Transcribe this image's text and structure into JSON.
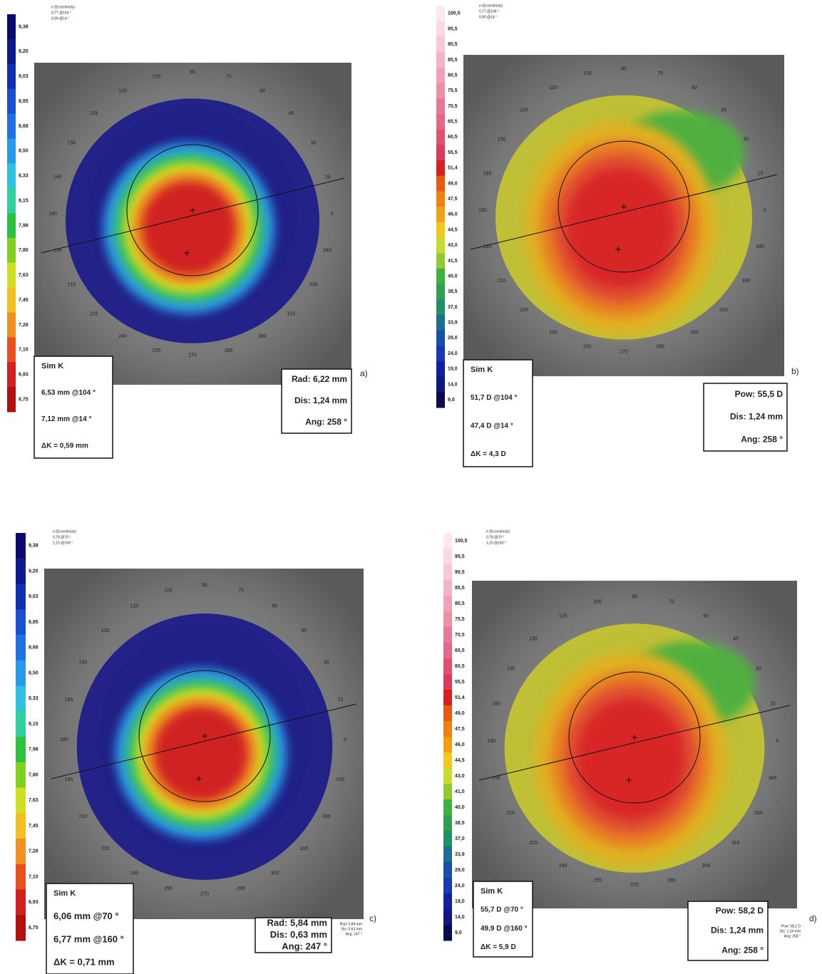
{
  "scales": {
    "radius": [
      "9,38",
      "9,20",
      "9,03",
      "8,85",
      "8,68",
      "8,50",
      "8,33",
      "8,15",
      "7,98",
      "7,80",
      "7,63",
      "7,45",
      "7,28",
      "7,10",
      "6,93",
      "6,75"
    ],
    "power": [
      "100,5",
      "95,5",
      "90,5",
      "85,5",
      "80,5",
      "75,5",
      "70,5",
      "65,5",
      "60,5",
      "55,5",
      "51,4",
      "49,0",
      "47,5",
      "46,0",
      "44,5",
      "43,0",
      "41,5",
      "40,0",
      "38,5",
      "37,0",
      "33,9",
      "29,0",
      "24,0",
      "19,0",
      "14,0",
      "9,0"
    ]
  },
  "angle_labels": [
    "0",
    "15",
    "30",
    "45",
    "60",
    "75",
    "90",
    "105",
    "120",
    "135",
    "150",
    "165",
    "180",
    "195",
    "210",
    "225",
    "240",
    "255",
    "270",
    "285",
    "300",
    "315",
    "330",
    "345"
  ],
  "panels": [
    {
      "letter": "a)",
      "scale": "radius",
      "eccentricity": [
        "e (Eccentricity)",
        "0,77 @104 °",
        "0,90 @14 °"
      ],
      "sim_k": {
        "title": "Sim K",
        "lines": [
          "6,53 mm @104 °",
          "7,12 mm @14 °",
          "ΔK = 0,59 mm"
        ]
      },
      "info": [
        "Rad: 6,22 mm",
        "Dis: 1,24 mm",
        "Ang: 258 °"
      ]
    },
    {
      "letter": "b)",
      "scale": "power",
      "eccentricity": [
        "e (Eccentricity)",
        "0,77 @104 °",
        "0,90 @14 °"
      ],
      "sim_k": {
        "title": "Sim K",
        "lines": [
          "51,7 D @104 °",
          "47,4 D @14 °",
          "ΔK = 4,3 D"
        ]
      },
      "info": [
        "Pow: 55,5 D",
        "Dis: 1,24 mm",
        "Ang: 258 °"
      ]
    },
    {
      "letter": "c)",
      "scale": "radius",
      "eccentricity": [
        "e (Eccentricity)",
        "0,78 @70 °",
        "1,15 @160 °"
      ],
      "sim_k": {
        "title": "Sim K",
        "lines": [
          "6,06 mm @70 °",
          "6,77 mm @160 °",
          "ΔK = 0,71 mm"
        ]
      },
      "info": [
        "Rad: 5,84 mm",
        "Dis: 0,63 mm",
        "Ang: 247 °"
      ]
    },
    {
      "letter": "d)",
      "scale": "power",
      "eccentricity": [
        "e (Eccentricity)",
        "0,78 @70 °",
        "1,15 @160 °"
      ],
      "sim_k": {
        "title": "Sim K",
        "lines": [
          "55,7 D @70 °",
          "49,9 D @160 °",
          "ΔK = 5,9 D"
        ]
      },
      "info": [
        "Pow: 58,2 D",
        "Dis: 1,24 mm",
        "Ang: 258 °"
      ]
    }
  ]
}
